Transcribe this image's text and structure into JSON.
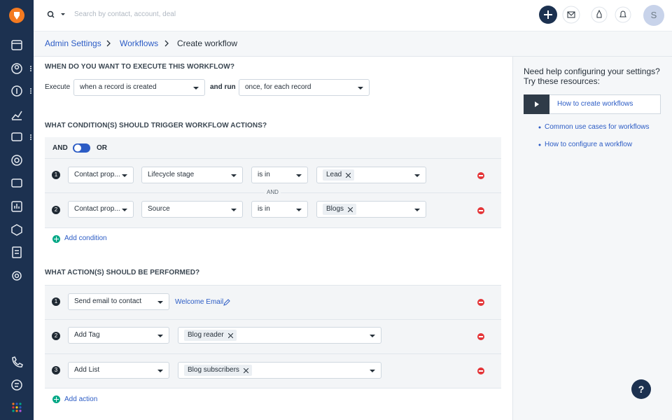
{
  "topbar": {
    "search_placeholder": "Search by contact, account, deal",
    "avatar": "S"
  },
  "breadcrumb": [
    "Admin Settings",
    "Workflows",
    "Create workflow"
  ],
  "execute": {
    "title": "WHEN DO YOU WANT TO EXECUTE THIS WORKFLOW?",
    "label": "Execute",
    "trigger": "when a record is created",
    "run_label": "and run",
    "run": "once, for each record"
  },
  "conditions": {
    "title": "WHAT CONDITION(S) SHOULD TRIGGER WORKFLOW ACTIONS?",
    "and": "AND",
    "or": "OR",
    "rows": [
      {
        "number": "1",
        "entity": "Contact prop...",
        "field": "Lifecycle stage",
        "operator": "is in",
        "value": "Lead"
      },
      {
        "number": "2",
        "entity": "Contact prop...",
        "field": "Source",
        "operator": "is in",
        "value": "Blogs"
      }
    ],
    "joiner": "AND",
    "add": "Add condition"
  },
  "actions": {
    "title": "WHAT ACTION(S) SHOULD BE PERFORMED?",
    "rows": [
      {
        "number": "1",
        "action": "Send email to contact",
        "link": "Welcome Email"
      },
      {
        "number": "2",
        "action": "Add Tag",
        "value": "Blog reader"
      },
      {
        "number": "3",
        "action": "Add List",
        "value": "Blog subscribers"
      }
    ],
    "add": "Add action"
  },
  "help": {
    "title_lines": [
      "Need help configuring your settings?",
      "Try these resources:"
    ],
    "video": "How to create workflows",
    "links": [
      "Common use cases for workflows",
      "How to configure a workflow"
    ]
  },
  "help_button": "?"
}
